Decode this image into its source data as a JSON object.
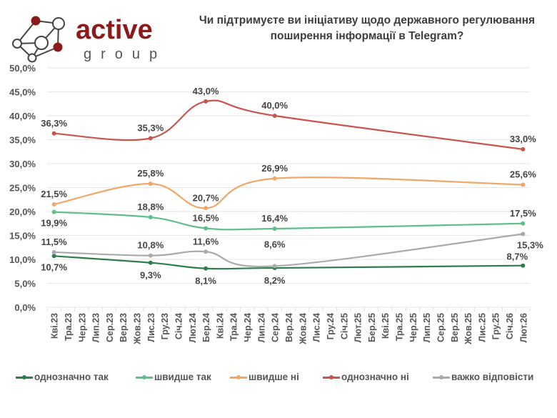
{
  "logo": {
    "word1": "active",
    "word2": "group",
    "icon": "network-nodes-icon",
    "brand_color": "#8b1a1a"
  },
  "title": {
    "line1": "Чи підтримуєте ви ініціативу щодо державного регулювання",
    "line2": "поширення інформації в Telegram?"
  },
  "chart_data": {
    "type": "line",
    "title": "Чи підтримуєте ви ініціативу щодо державного регулювання поширення інформації в Telegram?",
    "xlabel": "",
    "ylabel": "",
    "ylim": [
      0,
      50
    ],
    "yticks": [
      "0,0%",
      "5,0%",
      "10,0%",
      "15,0%",
      "20,0%",
      "25,0%",
      "30,0%",
      "35,0%",
      "40,0%",
      "45,0%",
      "50,0%"
    ],
    "grid": true,
    "legend_position": "bottom",
    "categories": [
      "Кві.23",
      "Тра.23",
      "Чер.23",
      "Лип.23",
      "Сер.23",
      "Вер.23",
      "Жов.23",
      "Лис.23",
      "Гру.23",
      "Січ.24",
      "Лют.24",
      "Бер.24",
      "Кві.24",
      "Тра.24",
      "Чер.24",
      "Лип.24",
      "Сер.24",
      "Вер.24",
      "Жов.24",
      "Лис.24",
      "Гру.24",
      "Січ.25",
      "Лют.25",
      "Бер.25",
      "Кві.25",
      "Тра.25",
      "Чер.25",
      "Лип.25",
      "Сер.25",
      "Вер.25",
      "Жов.25",
      "Лис.25",
      "Гру.25",
      "Січ.26",
      "Лют.26"
    ],
    "series": [
      {
        "name": "однозначно так",
        "color": "#2e7d4f",
        "points": [
          [
            0,
            10.7
          ],
          [
            7,
            9.3
          ],
          [
            11,
            8.1
          ],
          [
            16,
            8.2
          ],
          [
            34,
            8.7
          ]
        ],
        "labels": [
          "10,7%",
          "9,3%",
          "8,1%",
          "8,2%",
          "8,7%"
        ]
      },
      {
        "name": "швидше так",
        "color": "#5dbf8a",
        "points": [
          [
            0,
            19.9
          ],
          [
            7,
            18.8
          ],
          [
            11,
            16.5
          ],
          [
            16,
            16.4
          ],
          [
            34,
            17.5
          ]
        ],
        "labels": [
          "19,9%",
          "18,8%",
          "16,5%",
          "16,4%",
          "17,5%"
        ]
      },
      {
        "name": "швидше ні",
        "color": "#f0a868",
        "points": [
          [
            0,
            21.5
          ],
          [
            7,
            25.8
          ],
          [
            11,
            20.7
          ],
          [
            16,
            26.9
          ],
          [
            34,
            25.6
          ]
        ],
        "labels": [
          "21,5%",
          "25,8%",
          "20,7%",
          "26,9%",
          "25,6%"
        ]
      },
      {
        "name": "однозначно ні",
        "color": "#c95550",
        "points": [
          [
            0,
            36.3
          ],
          [
            7,
            35.3
          ],
          [
            11,
            43.0
          ],
          [
            16,
            40.0
          ],
          [
            34,
            33.0
          ]
        ],
        "labels": [
          "36,3%",
          "35,3%",
          "43,0%",
          "40,0%",
          "33,0%"
        ]
      },
      {
        "name": "важко відповісти",
        "color": "#aaaaaa",
        "points": [
          [
            0,
            11.5
          ],
          [
            7,
            10.8
          ],
          [
            11,
            11.6
          ],
          [
            16,
            8.6
          ],
          [
            34,
            15.3
          ]
        ],
        "labels": [
          "11,5%",
          "10,8%",
          "11,6%",
          "8,6%",
          "15,3%"
        ]
      }
    ]
  }
}
